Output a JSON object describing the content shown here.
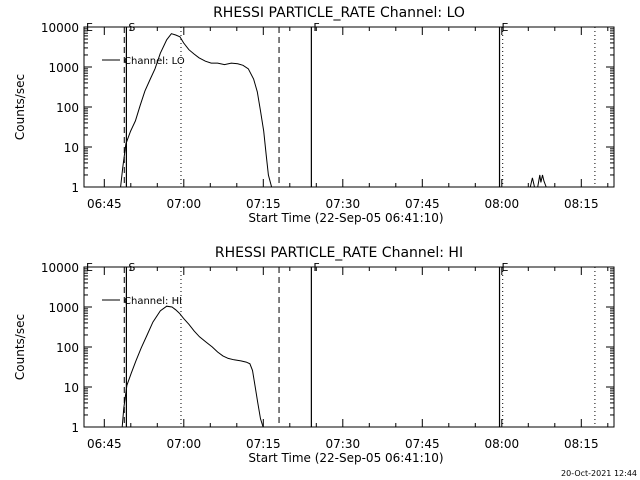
{
  "colors": {
    "background": "#ffffff",
    "foreground": "#000000"
  },
  "footer": {
    "timestamp": "20-Oct-2021 12:44"
  },
  "chart_data": [
    {
      "type": "line",
      "title": "RHESSI PARTICLE_RATE Channel: LO",
      "xlabel": "Start Time (22-Sep-05 06:41:10)",
      "ylabel": "Counts/sec",
      "yscale": "log",
      "ylim": [
        1,
        10000
      ],
      "xlim_minutes": [
        0,
        100
      ],
      "x_tick_labels": [
        "06:45",
        "07:00",
        "07:15",
        "07:30",
        "07:45",
        "08:00",
        "08:15"
      ],
      "x_tick_minutes": [
        3.83,
        18.83,
        33.83,
        48.83,
        63.83,
        78.83,
        93.83
      ],
      "y_tick_labels": [
        "1",
        "10",
        "100",
        "1000",
        "10000"
      ],
      "y_tick_values": [
        1,
        10,
        100,
        1000,
        10000
      ],
      "legend": "Channel: LO",
      "legend_position": "top-left",
      "markers": [
        {
          "label": "E",
          "minute": 0,
          "style": "solid"
        },
        {
          "label": "S",
          "minute": 8.0,
          "style": "dashed"
        },
        {
          "label": "F",
          "minute": 42.9,
          "style": "solid"
        },
        {
          "label": "E",
          "minute": 78.4,
          "style": "solid"
        }
      ],
      "ref_lines": [
        {
          "minute": 7.6,
          "style": "dashed"
        },
        {
          "minute": 18.3,
          "style": "dotted"
        },
        {
          "minute": 36.8,
          "style": "dashed"
        },
        {
          "minute": 79.0,
          "style": "dotted"
        },
        {
          "minute": 96.4,
          "style": "dotted"
        }
      ],
      "series": [
        {
          "name": "Channel: LO",
          "segments": [
            {
              "x": [
                6.9,
                7.3,
                7.9,
                8.8,
                9.7,
                10.6,
                11.5,
                12.5,
                13.4,
                14.4,
                15.6,
                16.5,
                17.3,
                18.1,
                18.8,
                19.8,
                20.8,
                21.7,
                22.9,
                24.0,
                25.2,
                26.5,
                27.8,
                29.0,
                30.0,
                31.0,
                32.0,
                32.7,
                33.3,
                33.9,
                34.4,
                34.8,
                35.4
              ],
              "y": [
                1,
                3,
                12,
                25,
                45,
                110,
                250,
                500,
                900,
                2200,
                4800,
                6800,
                6300,
                5700,
                4000,
                2700,
                2100,
                1700,
                1400,
                1250,
                1250,
                1150,
                1250,
                1200,
                1100,
                900,
                500,
                240,
                80,
                25,
                6,
                2,
                1
              ]
            },
            {
              "x": [
                84.2,
                84.6,
                85.0
              ],
              "y": [
                1,
                1.7,
                1
              ]
            },
            {
              "x": [
                85.6,
                86.0,
                86.2,
                86.5,
                86.8,
                87.2
              ],
              "y": [
                1,
                2,
                1.3,
                2,
                1.4,
                1
              ]
            }
          ]
        }
      ]
    },
    {
      "type": "line",
      "title": "RHESSI PARTICLE_RATE Channel: HI",
      "xlabel": "Start Time (22-Sep-05 06:41:10)",
      "ylabel": "Counts/sec",
      "yscale": "log",
      "ylim": [
        1,
        10000
      ],
      "xlim_minutes": [
        0,
        100
      ],
      "x_tick_labels": [
        "06:45",
        "07:00",
        "07:15",
        "07:30",
        "07:45",
        "08:00",
        "08:15"
      ],
      "x_tick_minutes": [
        3.83,
        18.83,
        33.83,
        48.83,
        63.83,
        78.83,
        93.83
      ],
      "y_tick_labels": [
        "1",
        "10",
        "100",
        "1000",
        "10000"
      ],
      "y_tick_values": [
        1,
        10,
        100,
        1000,
        10000
      ],
      "legend": "Channel: HI",
      "legend_position": "top-left",
      "markers": [
        {
          "label": "E",
          "minute": 0,
          "style": "solid"
        },
        {
          "label": "S",
          "minute": 8.0,
          "style": "dashed"
        },
        {
          "label": "F",
          "minute": 42.9,
          "style": "solid"
        },
        {
          "label": "E",
          "minute": 78.4,
          "style": "solid"
        }
      ],
      "ref_lines": [
        {
          "minute": 7.6,
          "style": "dashed"
        },
        {
          "minute": 18.3,
          "style": "dotted"
        },
        {
          "minute": 36.8,
          "style": "dashed"
        },
        {
          "minute": 79.0,
          "style": "dotted"
        },
        {
          "minute": 96.4,
          "style": "dotted"
        }
      ],
      "series": [
        {
          "name": "Channel: HI",
          "segments": [
            {
              "x": [
                7.2,
                7.5,
                8.1,
                8.9,
                9.8,
                10.8,
                11.9,
                13.0,
                14.4,
                15.6,
                16.6,
                17.3,
                18.0,
                18.8,
                19.8,
                20.8,
                21.8,
                23.1,
                24.2,
                25.2,
                26.2,
                27.2,
                28.3,
                29.6,
                30.6,
                31.3,
                31.8,
                32.2,
                32.8,
                33.3,
                33.8
              ],
              "y": [
                1,
                3,
                11,
                22,
                45,
                95,
                200,
                420,
                800,
                1050,
                1000,
                850,
                700,
                520,
                370,
                250,
                180,
                130,
                100,
                75,
                60,
                52,
                48,
                45,
                42,
                38,
                26,
                12,
                4,
                1.6,
                1
              ]
            }
          ]
        }
      ]
    }
  ]
}
